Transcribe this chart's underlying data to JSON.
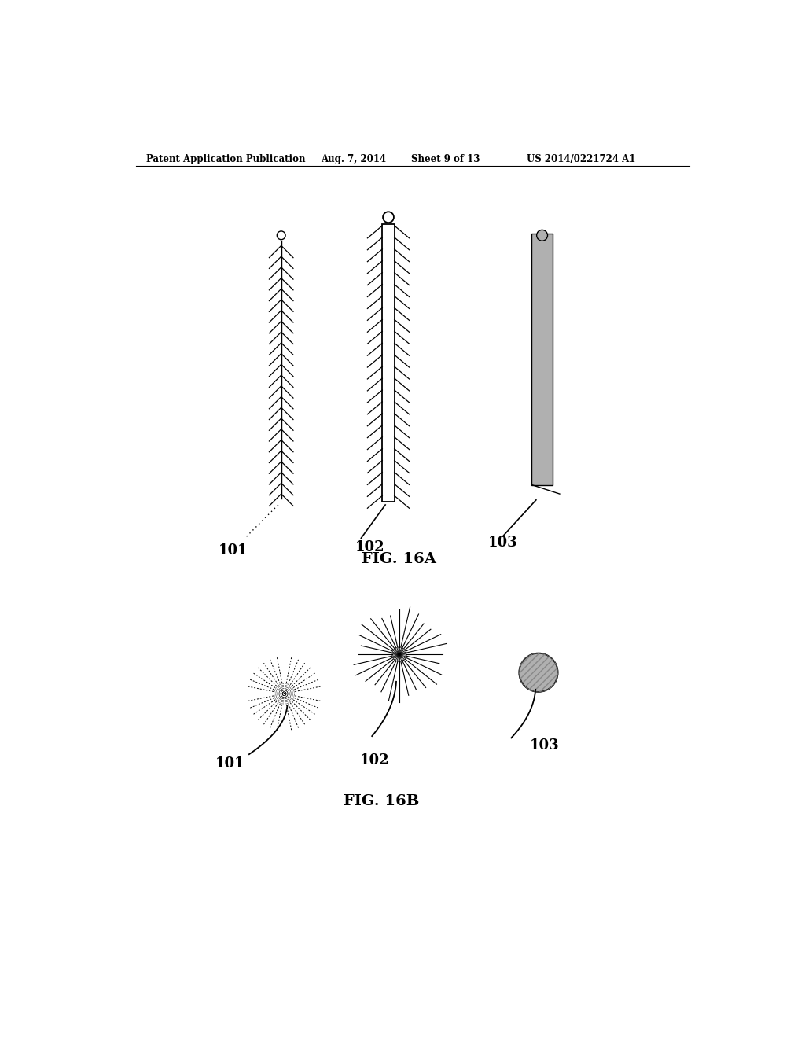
{
  "bg_color": "#ffffff",
  "header_text": "Patent Application Publication",
  "header_date": "Aug. 7, 2014",
  "header_sheet": "Sheet 9 of 13",
  "header_patent": "US 2014/0221724 A1",
  "fig16a_label": "FIG. 16A",
  "fig16b_label": "FIG. 16B",
  "label_101": "101",
  "label_102": "102",
  "label_103": "103",
  "gray_fill": "#b0b0b0"
}
